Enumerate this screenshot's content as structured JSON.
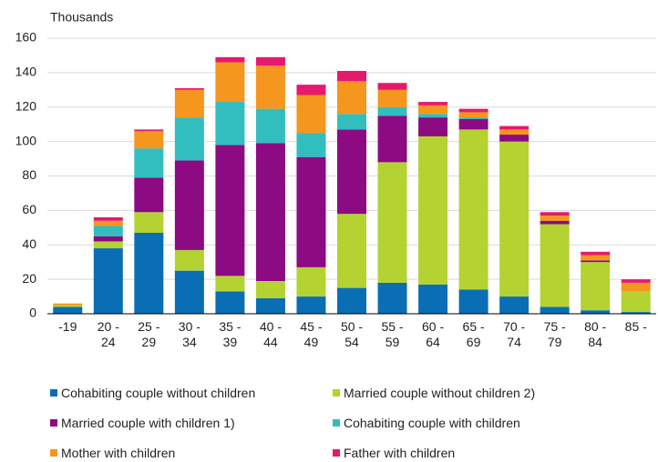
{
  "chart_data": {
    "type": "stacked_bar",
    "y_label": "Thousands",
    "categories": [
      "-19",
      "20 - 24",
      "25 - 29",
      "30 - 34",
      "35 - 39",
      "40 - 44",
      "45 - 49",
      "50 - 54",
      "55 - 59",
      "60 - 64",
      "65 - 69",
      "70 - 74",
      "75 - 79",
      "80 - 84",
      "85 -"
    ],
    "series": [
      {
        "name": "Cohabiting couple without children",
        "color": "#0a6eb4",
        "values": [
          4,
          38,
          47,
          25,
          13,
          9,
          10,
          15,
          18,
          17,
          14,
          10,
          4,
          2,
          1
        ]
      },
      {
        "name": "Married couple without children 2)",
        "color": "#b4d232",
        "values": [
          1,
          4,
          12,
          12,
          9,
          10,
          17,
          43,
          70,
          86,
          93,
          90,
          48,
          28,
          12
        ]
      },
      {
        "name": "Married couple with children 1)",
        "color": "#8c0a82",
        "values": [
          0,
          3,
          20,
          52,
          76,
          80,
          64,
          49,
          27,
          11,
          6,
          4,
          2,
          1,
          0
        ]
      },
      {
        "name": "Cohabiting couple with children",
        "color": "#32bebe",
        "values": [
          0,
          6,
          17,
          25,
          25,
          20,
          14,
          9,
          5,
          2,
          1,
          0,
          0,
          0,
          0
        ]
      },
      {
        "name": "Mother with children",
        "color": "#f5961e",
        "values": [
          1,
          3,
          10,
          16,
          23,
          25,
          22,
          19,
          10,
          5,
          3,
          3,
          3,
          3,
          5
        ]
      },
      {
        "name": "Father with children",
        "color": "#e6196e",
        "values": [
          0,
          2,
          1,
          1,
          3,
          5,
          6,
          6,
          4,
          2,
          2,
          2,
          2,
          2,
          2
        ]
      }
    ],
    "ylim": [
      0,
      160
    ],
    "yticks": [
      0,
      20,
      40,
      60,
      80,
      100,
      120,
      140,
      160
    ],
    "grid": true
  }
}
